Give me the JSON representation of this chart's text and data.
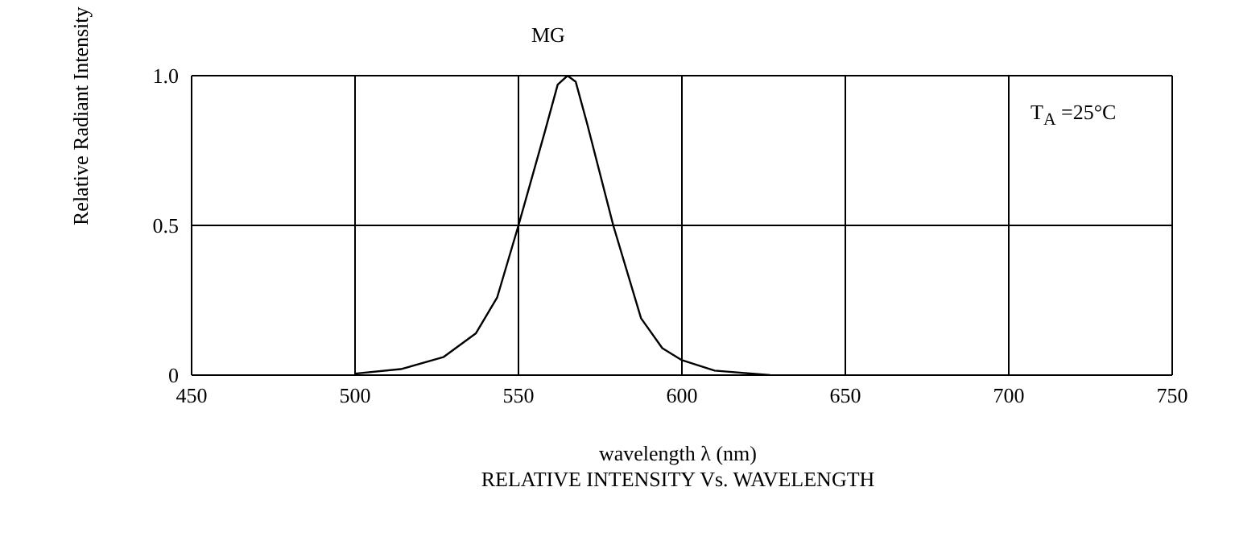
{
  "chart_data": {
    "type": "line",
    "title": "MG",
    "xlabel": "wavelength λ (nm)",
    "ylabel": "Relative Radiant Intensity",
    "annotations": [
      "T$_{A}$ =25°C",
      "RELATIVE INTENSITY Vs. WAVELENGTH"
    ],
    "x": [
      500,
      514,
      527,
      537,
      543.5,
      550,
      558,
      562,
      565,
      567.5,
      571,
      579,
      587.5,
      594,
      600,
      610,
      627
    ],
    "series": [
      {
        "color": "#000000",
        "values": [
          0.005,
          0.02,
          0.06,
          0.14,
          0.26,
          0.5,
          0.81,
          0.97,
          1.0,
          0.98,
          0.84,
          0.5,
          0.19,
          0.09,
          0.05,
          0.015,
          0
        ]
      }
    ],
    "xlim": [
      450,
      750
    ],
    "xticks": [
      450,
      500,
      550,
      600,
      650,
      700,
      750
    ],
    "ylim": [
      0,
      1
    ],
    "yticks": [
      {
        "value": 0,
        "label": "0"
      },
      0.5,
      {
        "value": 1,
        "label": "1.0"
      }
    ],
    "grid": true,
    "marker": "none",
    "line_style": "solid"
  }
}
